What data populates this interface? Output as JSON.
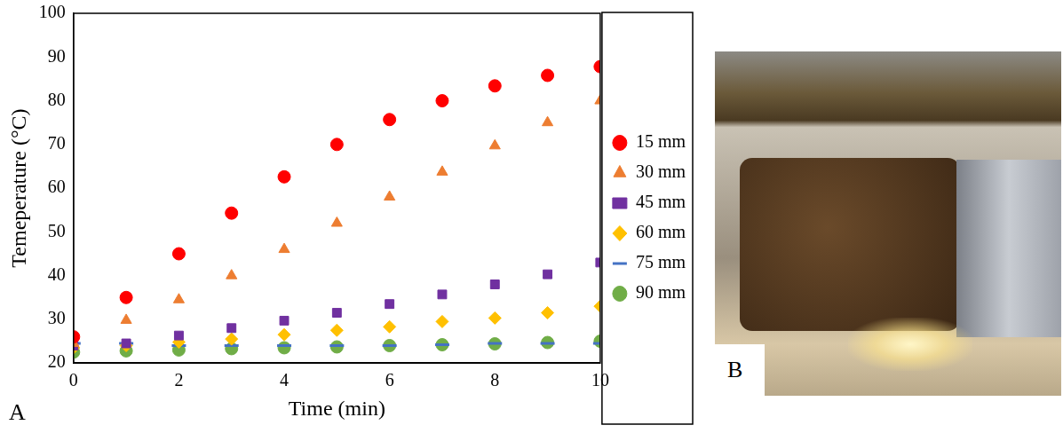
{
  "chart_data": {
    "type": "scatter",
    "x_label": "Time (min)",
    "y_label": "Temeperature (°C)",
    "x": [
      0,
      1,
      2,
      3,
      4,
      5,
      6,
      7,
      8,
      9,
      10
    ],
    "series": [
      {
        "name": "15 mm",
        "color": "#ff0000",
        "marker": "circle",
        "values": [
          26,
          35,
          45,
          54.3,
          62.6,
          70,
          75.7,
          80,
          83.4,
          85.8,
          87.8
        ]
      },
      {
        "name": "30 mm",
        "color": "#ed7d31",
        "marker": "triangle",
        "values": [
          24.5,
          29.8,
          34.5,
          40,
          46,
          52,
          58,
          63.7,
          69.7,
          75,
          80
        ]
      },
      {
        "name": "45 mm",
        "color": "#7030a0",
        "marker": "square",
        "values": [
          24,
          24.5,
          26.3,
          28,
          29.7,
          31.5,
          33.5,
          35.7,
          38,
          40.3,
          43
        ]
      },
      {
        "name": "60 mm",
        "color": "#ffc000",
        "marker": "diamond",
        "values": [
          23.5,
          24,
          24.8,
          25.5,
          26.5,
          27.5,
          28.3,
          29.5,
          30.3,
          31.5,
          33
        ]
      },
      {
        "name": "75 mm",
        "color": "#4472c4",
        "marker": "dash",
        "values": [
          24.5,
          24.5,
          24,
          24,
          24,
          24,
          24,
          24.2,
          24.5,
          24.5,
          24.5
        ]
      },
      {
        "name": "90 mm",
        "color": "#70ad47",
        "marker": "circle",
        "values": [
          22.5,
          22.8,
          23,
          23.3,
          23.5,
          23.7,
          24,
          24.2,
          24.4,
          24.7,
          25
        ]
      }
    ],
    "xlim": [
      0,
      10
    ],
    "xticks": [
      0,
      2,
      4,
      6,
      8,
      10
    ],
    "ylim": [
      20,
      100
    ],
    "yticks": [
      20,
      30,
      40,
      50,
      60,
      70,
      80,
      90,
      100
    ],
    "grid": false,
    "legend": "right"
  },
  "panel_labels": [
    "A",
    "B"
  ]
}
